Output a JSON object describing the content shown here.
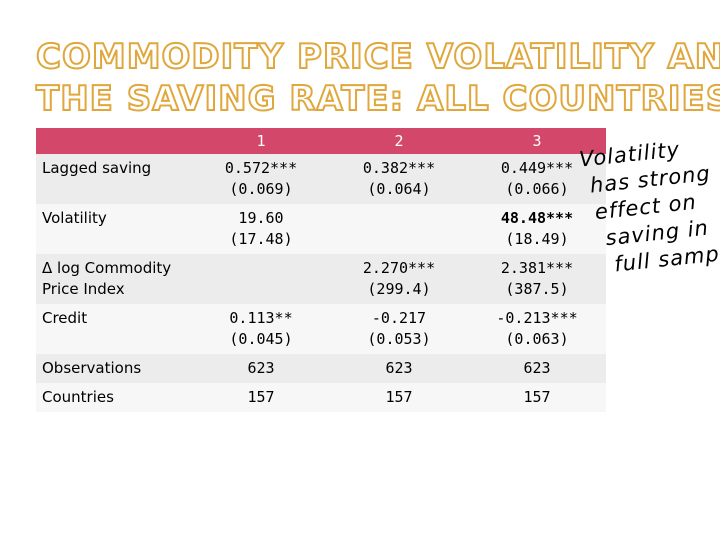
{
  "title": {
    "line1": "COMMODITY PRICE VOLATILITY AND",
    "line2": "THE SAVING RATE: ALL COUNTRIES"
  },
  "table": {
    "headers": [
      "",
      "1",
      "2",
      "3"
    ],
    "rows": [
      {
        "label": "Lagged saving",
        "cells": [
          [
            "0.572***",
            "(0.069)"
          ],
          [
            "0.382***",
            "(0.064)"
          ],
          [
            "0.449***",
            "(0.066)"
          ]
        ]
      },
      {
        "label": "Volatility",
        "cells": [
          [
            "19.60",
            "(17.48)"
          ],
          [
            "",
            ""
          ],
          [
            "48.48***",
            "(18.49)"
          ]
        ]
      },
      {
        "label_line1": "Δ log Commodity",
        "label_line2": "Price Index",
        "cells": [
          [
            "",
            ""
          ],
          [
            "2.270***",
            "(299.4)"
          ],
          [
            "2.381***",
            "(387.5)"
          ]
        ]
      },
      {
        "label": "Credit",
        "cells": [
          [
            "0.113**",
            "(0.045)"
          ],
          [
            "-0.217",
            "(0.053)"
          ],
          [
            "-0.213***",
            "(0.063)"
          ]
        ]
      },
      {
        "label": "Observations",
        "cells": [
          [
            "623"
          ],
          [
            "623"
          ],
          [
            "623"
          ]
        ]
      },
      {
        "label": "Countries",
        "cells": [
          [
            "157"
          ],
          [
            "157"
          ],
          [
            "157"
          ]
        ]
      }
    ]
  },
  "annotation": {
    "lines": [
      "Volatility",
      "has strong",
      "effect on",
      "saving in",
      "full sample"
    ]
  },
  "colors": {
    "header_bg": "#d2476a",
    "title_outline": "#e0a73c",
    "row_odd": "#ececec",
    "row_even": "#f7f7f7"
  }
}
